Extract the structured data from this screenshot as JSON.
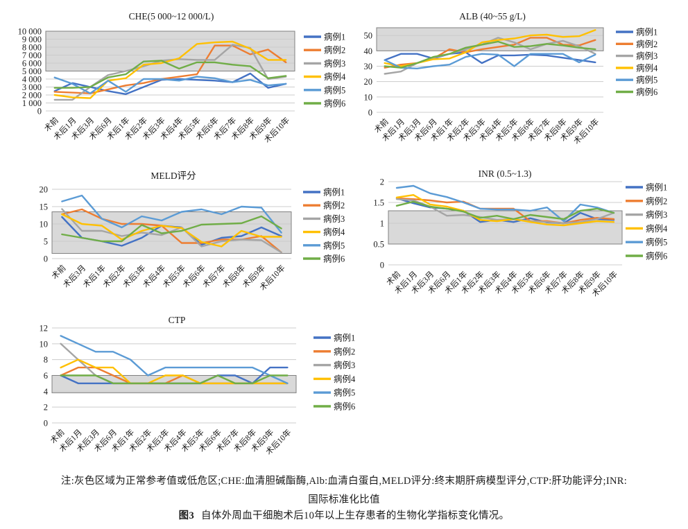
{
  "note": {
    "line1": "注:灰色区域为正常参考值或低危区;CHE:血清胆碱酯酶,Alb:血清白蛋白,MELD评分:终末期肝病模型评分,CTP:肝功能评分;INR:",
    "line2": "国际标准化比值",
    "fig_label": "图3",
    "fig_text": "自体外周血干细胞术后10年以上生存患者的生物化学指标变化情况。"
  },
  "colors": {
    "band_fill": "#d9d9d9",
    "band_border": "#808080",
    "gridline": "#cccccc",
    "text": "#1a1a1a",
    "case1": "#4472C4",
    "case2": "#ED7D31",
    "case3": "#A5A5A5",
    "case4": "#FFC000",
    "case5": "#5B9BD5",
    "case6": "#70AD47"
  },
  "chart_data": [
    {
      "id": "che",
      "type": "line",
      "title": "CHE(5 000~12 000/L)",
      "legend_position": "right",
      "grid": true,
      "ylim": [
        0,
        10000
      ],
      "yticks": [
        0,
        1000,
        2000,
        3000,
        4000,
        5000,
        6000,
        7000,
        8000,
        9000,
        10000
      ],
      "ytick_labels": [
        "0",
        "1 000",
        "2 000",
        "3 000",
        "4 000",
        "5 000",
        "6 000",
        "7 000",
        "8 000",
        "9 000",
        "10 000"
      ],
      "band": [
        5000,
        10000
      ],
      "categories": [
        "术前",
        "术后1月",
        "术后3月",
        "术后6月",
        "术后1年",
        "术后2年",
        "术后3年",
        "术后4年",
        "术后5年",
        "术后6年",
        "术后7年",
        "术后8年",
        "术后9年",
        "术后10年"
      ],
      "series": [
        {
          "name": "病例1",
          "color": "#4472C4",
          "values": [
            2500,
            3500,
            3000,
            2500,
            2100,
            3000,
            3900,
            4000,
            3900,
            3800,
            3600,
            4700,
            2900,
            3400
          ]
        },
        {
          "name": "病例2",
          "color": "#ED7D31",
          "values": [
            2400,
            2300,
            2200,
            2700,
            3200,
            3500,
            4000,
            4300,
            4600,
            8200,
            8200,
            7100,
            7700,
            6100
          ]
        },
        {
          "name": "病例3",
          "color": "#A5A5A5",
          "values": [
            1400,
            1400,
            3000,
            4500,
            5000,
            5600,
            6300,
            6500,
            6400,
            6400,
            8300,
            7900,
            4000,
            4300
          ]
        },
        {
          "name": "病例4",
          "color": "#FFC000",
          "values": [
            2000,
            1700,
            1600,
            3800,
            4100,
            5800,
            6000,
            6600,
            8400,
            8600,
            8700,
            7800,
            6400,
            6400
          ]
        },
        {
          "name": "病例5",
          "color": "#5B9BD5",
          "values": [
            4200,
            3400,
            2200,
            3800,
            2400,
            4000,
            4000,
            3800,
            4300,
            4100,
            3600,
            3900,
            3200,
            3400
          ]
        },
        {
          "name": "病例6",
          "color": "#70AD47",
          "values": [
            2900,
            2900,
            3000,
            4200,
            4600,
            6200,
            6300,
            5300,
            6100,
            6100,
            5800,
            5600,
            4100,
            4400
          ]
        }
      ]
    },
    {
      "id": "alb",
      "type": "line",
      "title": "ALB (40~55 g/L)",
      "legend_position": "right",
      "grid": true,
      "ylim": [
        0,
        55
      ],
      "yticks": [
        0,
        10,
        20,
        30,
        40,
        50
      ],
      "ytick_labels": [
        "0",
        "10",
        "20",
        "30",
        "40",
        "50"
      ],
      "band": [
        40,
        55
      ],
      "categories": [
        "术前",
        "术后1月",
        "术后3月",
        "术后6月",
        "术后1年",
        "术后2年",
        "术后3年",
        "术后4年",
        "术后5年",
        "术后6年",
        "术后7年",
        "术后8年",
        "术后9年",
        "术后10年"
      ],
      "series": [
        {
          "name": "病例1",
          "color": "#4472C4",
          "values": [
            34,
            38,
            38,
            35,
            38,
            39,
            32,
            37,
            37,
            37.5,
            37,
            35.5,
            34,
            32.5
          ]
        },
        {
          "name": "病例2",
          "color": "#ED7D31",
          "values": [
            29,
            31,
            32,
            35,
            41,
            39,
            41,
            42.5,
            44,
            48.5,
            48.5,
            44,
            43.5,
            47
          ]
        },
        {
          "name": "病例3",
          "color": "#A5A5A5",
          "values": [
            25,
            26.5,
            32,
            35.5,
            38,
            41,
            44,
            48.5,
            45.5,
            41,
            44.5,
            46.5,
            43,
            38
          ]
        },
        {
          "name": "病例4",
          "color": "#FFC000",
          "values": [
            32,
            30,
            32,
            34.5,
            35,
            39,
            45.5,
            47,
            48,
            50,
            50.5,
            49,
            49.5,
            53.5
          ]
        },
        {
          "name": "病例5",
          "color": "#5B9BD5",
          "values": [
            34,
            29,
            28.5,
            30,
            31,
            36,
            38,
            37.5,
            30,
            38,
            38,
            38,
            32.5,
            37.5
          ]
        },
        {
          "name": "病例6",
          "color": "#70AD47",
          "values": [
            30,
            29,
            32,
            36,
            38,
            42,
            44,
            46,
            42.5,
            43,
            44.5,
            43.5,
            42,
            41
          ]
        }
      ]
    },
    {
      "id": "meld",
      "type": "line",
      "title": "MELD评分",
      "legend_position": "right",
      "grid": true,
      "ylim": [
        0,
        20
      ],
      "yticks": [
        0,
        5,
        10,
        15,
        20
      ],
      "ytick_labels": [
        "0",
        "5",
        "10",
        "15",
        "20"
      ],
      "band": [
        1.5,
        13.5
      ],
      "categories": [
        "术前",
        "术后3月",
        "术后1年",
        "术后2年",
        "术后3年",
        "术后4年",
        "术后5年",
        "术后6年",
        "术后7年",
        "术后8年",
        "术后9年",
        "术后10年"
      ],
      "series": [
        {
          "name": "病例1",
          "color": "#4472C4",
          "values": [
            12,
            6,
            5,
            3.7,
            6,
            9.5,
            9,
            4,
            6,
            6.5,
            9,
            6.5
          ]
        },
        {
          "name": "病例2",
          "color": "#ED7D31",
          "values": [
            12.8,
            14.2,
            11.5,
            10,
            10,
            9.5,
            4.5,
            4.5,
            5.5,
            5.5,
            6.5,
            1.8
          ]
        },
        {
          "name": "病例3",
          "color": "#A5A5A5",
          "values": [
            14.3,
            8,
            8,
            6.5,
            7.5,
            6.8,
            9,
            3.5,
            5,
            5.5,
            5.3,
            1.8
          ]
        },
        {
          "name": "病例4",
          "color": "#FFC000",
          "values": [
            12.8,
            10,
            9.5,
            5.5,
            8,
            9.5,
            8.8,
            4.8,
            3.5,
            8,
            6.3,
            6.3
          ]
        },
        {
          "name": "病例5",
          "color": "#5B9BD5",
          "values": [
            16.5,
            18.2,
            11.5,
            9,
            12.2,
            11,
            13.5,
            14.2,
            12.8,
            15,
            14.7,
            7.5
          ]
        },
        {
          "name": "病例6",
          "color": "#70AD47",
          "values": [
            7,
            6,
            5,
            5,
            9.7,
            7.3,
            8,
            9.8,
            10,
            10.2,
            12.2,
            8.7
          ]
        }
      ]
    },
    {
      "id": "inr",
      "type": "line",
      "title": "INR (0.5~1.3)",
      "legend_position": "right",
      "grid": true,
      "ylim": [
        0,
        2
      ],
      "yticks": [
        0,
        0.5,
        1,
        1.5,
        2
      ],
      "ytick_labels": [
        "0",
        "0.5",
        "1",
        "1.5",
        "2"
      ],
      "band": [
        0.5,
        1.3
      ],
      "categories": [
        "术前",
        "术后1月",
        "术后3月",
        "术后6月",
        "术后1年",
        "术后2年",
        "术后3年",
        "术后4年",
        "术后5年",
        "术后6年",
        "术后7年",
        "术后8年",
        "术后9年",
        "术后10年"
      ],
      "series": [
        {
          "name": "病例1",
          "color": "#4472C4",
          "values": [
            1.6,
            1.48,
            1.38,
            1.35,
            1.3,
            1.03,
            1.08,
            1.03,
            1.12,
            1.02,
            1.0,
            1.25,
            1.1,
            1.08
          ]
        },
        {
          "name": "病例2",
          "color": "#ED7D31",
          "values": [
            1.6,
            1.58,
            1.55,
            1.5,
            1.52,
            1.35,
            1.35,
            1.35,
            1.05,
            1.05,
            1.0,
            1.08,
            1.13,
            1.1
          ]
        },
        {
          "name": "病例3",
          "color": "#A5A5A5",
          "values": [
            1.58,
            1.55,
            1.4,
            1.18,
            1.2,
            1.15,
            1.08,
            1.1,
            1.05,
            1.03,
            1.0,
            1.03,
            1.1,
            1.25
          ]
        },
        {
          "name": "病例4",
          "color": "#FFC000",
          "values": [
            1.62,
            1.68,
            1.45,
            1.4,
            1.3,
            1.08,
            1.05,
            1.1,
            1.03,
            0.97,
            0.95,
            1.0,
            1.05,
            1.03
          ]
        },
        {
          "name": "病例5",
          "color": "#5B9BD5",
          "values": [
            1.85,
            1.9,
            1.72,
            1.63,
            1.5,
            1.35,
            1.33,
            1.33,
            1.3,
            1.38,
            1.05,
            1.45,
            1.38,
            1.25
          ]
        },
        {
          "name": "病例6",
          "color": "#70AD47",
          "values": [
            1.42,
            1.52,
            1.4,
            1.35,
            1.28,
            1.13,
            1.18,
            1.1,
            1.2,
            1.15,
            1.1,
            1.3,
            1.35,
            1.25
          ]
        }
      ]
    },
    {
      "id": "ctp",
      "type": "line",
      "title": "CTP",
      "legend_position": "right",
      "grid": true,
      "ylim": [
        0,
        12
      ],
      "yticks": [
        0,
        2,
        4,
        6,
        8,
        10,
        12
      ],
      "ytick_labels": [
        "0",
        "2",
        "4",
        "6",
        "8",
        "10",
        "12"
      ],
      "band": [
        3.8,
        6
      ],
      "categories": [
        "术前",
        "术后1月",
        "术后3月",
        "术后6月",
        "术后1年",
        "术后2年",
        "术后3年",
        "术后4年",
        "术后5年",
        "术后6年",
        "术后7年",
        "术后8年",
        "术后9年",
        "术后10年"
      ],
      "series": [
        {
          "name": "病例1",
          "color": "#4472C4",
          "values": [
            6,
            5,
            5,
            5,
            5,
            5,
            5,
            5,
            5,
            6,
            6,
            5,
            7,
            7
          ]
        },
        {
          "name": "病例2",
          "color": "#ED7D31",
          "values": [
            6,
            7,
            7,
            6,
            5,
            5,
            5,
            6,
            5,
            5,
            5,
            5,
            5,
            5
          ]
        },
        {
          "name": "病例3",
          "color": "#A5A5A5",
          "values": [
            10,
            8,
            6,
            5,
            5,
            5,
            5,
            5,
            5,
            5,
            5,
            5,
            5,
            5
          ]
        },
        {
          "name": "病例4",
          "color": "#FFC000",
          "values": [
            7,
            8,
            7,
            7,
            5,
            5,
            6,
            6,
            5,
            5,
            5,
            5,
            5,
            5
          ]
        },
        {
          "name": "病例5",
          "color": "#5B9BD5",
          "values": [
            11,
            10,
            9,
            9,
            8,
            6,
            7,
            7,
            7,
            7,
            7,
            7,
            6,
            5
          ]
        },
        {
          "name": "病例6",
          "color": "#70AD47",
          "values": [
            6,
            6,
            6,
            5,
            5,
            5,
            5,
            5,
            5,
            6,
            5,
            5,
            6,
            6
          ]
        }
      ]
    }
  ]
}
